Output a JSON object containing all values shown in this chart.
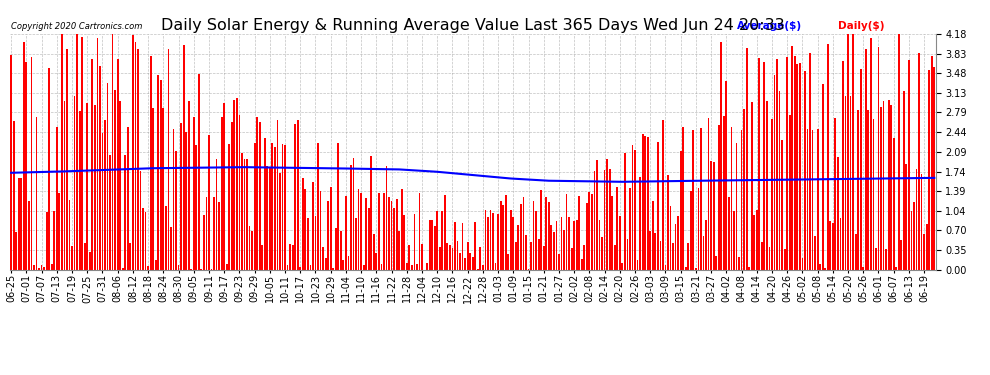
{
  "title": "Daily Solar Energy & Running Average Value Last 365 Days Wed Jun 24 20:33",
  "copyright": "Copyright 2020 Cartronics.com",
  "legend_avg": "Average($)",
  "legend_daily": "Daily($)",
  "yticks": [
    0.0,
    0.35,
    0.7,
    1.04,
    1.39,
    1.74,
    2.09,
    2.44,
    2.79,
    3.13,
    3.48,
    3.83,
    4.18
  ],
  "ylim": [
    0.0,
    4.18
  ],
  "bar_color": "#ff0000",
  "avg_color": "#0000ff",
  "background_color": "#ffffff",
  "grid_color": "#999999",
  "title_fontsize": 11.5,
  "tick_fontsize": 7,
  "bar_width": 0.7,
  "avg_line_shape": [
    [
      0.0,
      1.72
    ],
    [
      0.05,
      1.74
    ],
    [
      0.1,
      1.77
    ],
    [
      0.15,
      1.8
    ],
    [
      0.2,
      1.81
    ],
    [
      0.25,
      1.82
    ],
    [
      0.3,
      1.81
    ],
    [
      0.35,
      1.8
    ],
    [
      0.38,
      1.79
    ],
    [
      0.42,
      1.78
    ],
    [
      0.46,
      1.74
    ],
    [
      0.5,
      1.68
    ],
    [
      0.54,
      1.62
    ],
    [
      0.58,
      1.58
    ],
    [
      0.62,
      1.57
    ],
    [
      0.66,
      1.56
    ],
    [
      0.7,
      1.57
    ],
    [
      0.75,
      1.58
    ],
    [
      0.8,
      1.59
    ],
    [
      0.85,
      1.6
    ],
    [
      0.9,
      1.61
    ],
    [
      0.95,
      1.62
    ],
    [
      1.0,
      1.63
    ]
  ],
  "x_labels": [
    "06-25",
    "07-01",
    "07-07",
    "07-13",
    "07-19",
    "07-25",
    "07-31",
    "08-06",
    "08-12",
    "08-18",
    "08-24",
    "08-30",
    "09-05",
    "09-11",
    "09-17",
    "09-23",
    "09-29",
    "10-05",
    "10-11",
    "10-17",
    "10-23",
    "10-29",
    "11-04",
    "11-10",
    "11-16",
    "11-22",
    "11-28",
    "12-04",
    "12-10",
    "12-16",
    "12-22",
    "12-28",
    "01-03",
    "01-09",
    "01-15",
    "01-21",
    "01-27",
    "02-02",
    "02-08",
    "02-14",
    "02-20",
    "02-26",
    "03-03",
    "03-09",
    "03-15",
    "03-21",
    "03-27",
    "04-02",
    "04-08",
    "04-14",
    "04-20",
    "04-26",
    "05-02",
    "05-08",
    "05-14",
    "05-20",
    "05-26",
    "06-01",
    "06-07",
    "06-13",
    "06-19"
  ]
}
